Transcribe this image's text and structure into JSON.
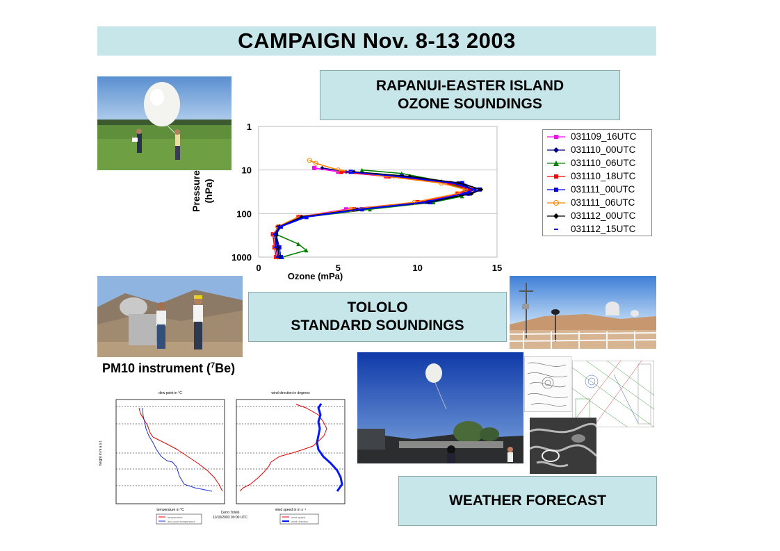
{
  "title": "CAMPAIGN Nov. 8-13 2003",
  "rapanui_box": {
    "line1": "RAPANUI-EASTER ISLAND",
    "line2": "OZONE SOUNDINGS"
  },
  "tololo_box": {
    "line1": "TOLOLO",
    "line2": "STANDARD SOUNDINGS"
  },
  "weather_box": {
    "label": "WEATHER FORECAST"
  },
  "pm10_caption": {
    "prefix": "PM10 instrument (",
    "sup": "7",
    "suffix": "Be)"
  },
  "colors": {
    "box_fill": "#c6e6ea",
    "grid": "#c8c8c8"
  },
  "chart_data": {
    "type": "line",
    "title": "",
    "xlabel": "Ozone (mPa)",
    "ylabel": "Pressure (hPa)",
    "xlim": [
      0,
      15
    ],
    "ylim": [
      1000,
      1
    ],
    "y_scale": "log",
    "x_ticks": [
      "0",
      "5",
      "10",
      "15"
    ],
    "y_ticks": [
      "1",
      "10",
      "100",
      "1000"
    ],
    "grid": true,
    "legend_position": "right",
    "series": [
      {
        "name": "031109_16UTC",
        "color": "#ff00ff",
        "marker": "square",
        "points": [
          [
            1.2,
            1000
          ],
          [
            1.1,
            600
          ],
          [
            1.0,
            300
          ],
          [
            1.3,
            200
          ],
          [
            2.5,
            120
          ],
          [
            5.5,
            80
          ],
          [
            10,
            55
          ],
          [
            12.8,
            35
          ],
          [
            13.2,
            28
          ],
          [
            12.0,
            20
          ],
          [
            8.0,
            14
          ],
          [
            5.0,
            11
          ],
          [
            3.5,
            9
          ]
        ]
      },
      {
        "name": "031110_00UTC",
        "color": "#000080",
        "marker": "diamond",
        "points": [
          [
            1.3,
            1000
          ],
          [
            1.2,
            600
          ],
          [
            1.0,
            300
          ],
          [
            1.2,
            200
          ],
          [
            2.8,
            120
          ],
          [
            6,
            80
          ],
          [
            10.5,
            55
          ],
          [
            13.0,
            35
          ],
          [
            13.6,
            28
          ],
          [
            12.5,
            20
          ],
          [
            8.5,
            14
          ],
          [
            5.5,
            11
          ],
          [
            4.0,
            9
          ]
        ]
      },
      {
        "name": "031110_06UTC",
        "color": "#008000",
        "marker": "triangle",
        "points": [
          [
            1.5,
            1000
          ],
          [
            3.0,
            700
          ],
          [
            2.5,
            500
          ],
          [
            1.1,
            300
          ],
          [
            1.4,
            200
          ],
          [
            3.0,
            120
          ],
          [
            7,
            80
          ],
          [
            11,
            55
          ],
          [
            12.8,
            40
          ],
          [
            13.0,
            28
          ],
          [
            11.5,
            18
          ],
          [
            9.0,
            12
          ],
          [
            6.5,
            10
          ]
        ]
      },
      {
        "name": "031110_18UTC",
        "color": "#ff0000",
        "marker": "square",
        "points": [
          [
            1.1,
            1000
          ],
          [
            1.0,
            600
          ],
          [
            0.9,
            300
          ],
          [
            1.3,
            200
          ],
          [
            2.6,
            120
          ],
          [
            6,
            80
          ],
          [
            10,
            55
          ],
          [
            12.5,
            35
          ],
          [
            13.3,
            28
          ],
          [
            12.0,
            20
          ],
          [
            8.2,
            14
          ],
          [
            5.2,
            11
          ]
        ]
      },
      {
        "name": "031111_00UTC",
        "color": "#0000ff",
        "marker": "square",
        "points": [
          [
            1.4,
            1000
          ],
          [
            1.3,
            600
          ],
          [
            1.1,
            300
          ],
          [
            1.4,
            200
          ],
          [
            3.0,
            120
          ],
          [
            6.5,
            80
          ],
          [
            10.8,
            55
          ],
          [
            13.2,
            35
          ],
          [
            13.9,
            28
          ],
          [
            12.8,
            20
          ],
          [
            9.0,
            14
          ],
          [
            5.8,
            11
          ]
        ]
      },
      {
        "name": "031111_06UTC",
        "color": "#ff8000",
        "marker": "circle",
        "points": [
          [
            1.2,
            1000
          ],
          [
            1.1,
            600
          ],
          [
            1.0,
            300
          ],
          [
            1.2,
            200
          ],
          [
            2.5,
            120
          ],
          [
            5.8,
            80
          ],
          [
            9.8,
            55
          ],
          [
            12.5,
            35
          ],
          [
            13.0,
            28
          ],
          [
            11.5,
            20
          ],
          [
            8.0,
            14
          ],
          [
            5.0,
            10
          ],
          [
            3.6,
            7
          ],
          [
            3.2,
            6
          ]
        ]
      },
      {
        "name": "031112_00UTC",
        "color": "#000000",
        "marker": "diamond",
        "points": [
          [
            1.3,
            1000
          ],
          [
            1.2,
            600
          ],
          [
            1.1,
            300
          ],
          [
            1.3,
            200
          ],
          [
            2.7,
            120
          ],
          [
            6.2,
            80
          ],
          [
            10.6,
            55
          ],
          [
            13.4,
            35
          ],
          [
            14.0,
            28
          ],
          [
            12.6,
            20
          ],
          [
            9.5,
            14
          ],
          [
            6.0,
            11
          ]
        ]
      },
      {
        "name": "031112_15UTC",
        "color": "#0000ff",
        "marker": "dash",
        "points": [
          [
            1.2,
            1000
          ],
          [
            1.1,
            600
          ],
          [
            1.0,
            300
          ],
          [
            1.3,
            200
          ],
          [
            2.9,
            120
          ],
          [
            6.3,
            80
          ],
          [
            10.4,
            55
          ],
          [
            12.9,
            35
          ],
          [
            13.5,
            28
          ],
          [
            12.2,
            20
          ],
          [
            8.7,
            14
          ],
          [
            5.6,
            11
          ]
        ]
      }
    ]
  },
  "tololo_charts": {
    "left": {
      "top_label": "dew point in °C",
      "bottom_label": "temperature in °C",
      "legend": [
        "temperature",
        "dew point temperature"
      ]
    },
    "right": {
      "top_label": "wind direction in degrees",
      "bottom_label": "wind speed in m s⁻¹",
      "legend": [
        "wind speed",
        "wind direction"
      ]
    },
    "footer_line1": "Cerro Tololo",
    "footer_line2": "11/10/2003 00:00 UTC",
    "y_label": "height in m a.s.l."
  }
}
